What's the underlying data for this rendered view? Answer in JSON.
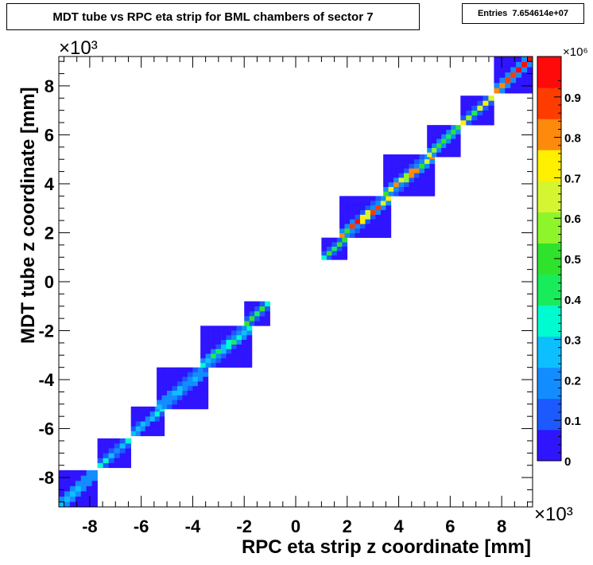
{
  "title": "MDT tube vs RPC eta strip for BML chambers of sector 7",
  "stats": {
    "label": "Entries",
    "value": "7.654614e+07"
  },
  "chart_data": {
    "type": "heatmap",
    "title": "MDT tube vs RPC eta strip for BML chambers of sector 7",
    "xlabel": "RPC eta strip z coordinate [mm]",
    "ylabel": "MDT tube z coordinate [mm]",
    "xlim": [
      -9.2,
      9.2
    ],
    "ylim": [
      -9.2,
      9.2
    ],
    "xticks": [
      -8,
      -6,
      -4,
      -2,
      0,
      2,
      4,
      6,
      8
    ],
    "yticks": [
      -8,
      -6,
      -4,
      -2,
      0,
      2,
      4,
      6,
      8
    ],
    "axis_multiplier": "×10³",
    "zlim": [
      0,
      1.0
    ],
    "zticks": [
      0,
      0.1,
      0.2,
      0.3,
      0.4,
      0.5,
      0.6,
      0.7,
      0.8,
      0.9
    ],
    "z_multiplier": "×10⁶",
    "palette": [
      "#2f14ff",
      "#1c59ff",
      "#138cff",
      "#0dbfff",
      "#00fbd1",
      "#19ec5b",
      "#2fe32c",
      "#8ef52b",
      "#d5f530",
      "#fff000",
      "#fd8a0c",
      "#ff3c00",
      "#ff0a0a"
    ],
    "blocks": [
      {
        "x0": -9.2,
        "x1": -7.7,
        "y0": -9.2,
        "y1": -7.7,
        "peak": 0.25
      },
      {
        "x0": -7.7,
        "x1": -6.4,
        "y0": -7.6,
        "y1": -6.4,
        "peak": 0.35
      },
      {
        "x0": -6.4,
        "x1": -5.1,
        "y0": -6.3,
        "y1": -5.1,
        "peak": 0.45
      },
      {
        "x0": -5.4,
        "x1": -3.4,
        "y0": -5.2,
        "y1": -3.5,
        "peak": 0.25
      },
      {
        "x0": -3.7,
        "x1": -1.7,
        "y0": -3.5,
        "y1": -1.8,
        "peak": 0.42
      },
      {
        "x0": -2.0,
        "x1": -1.0,
        "y0": -1.8,
        "y1": -0.8,
        "peak": 0.55
      },
      {
        "x0": 1.0,
        "x1": 2.0,
        "y0": 0.9,
        "y1": 1.8,
        "peak": 0.55
      },
      {
        "x0": 1.7,
        "x1": 3.7,
        "y0": 1.8,
        "y1": 3.5,
        "peak": 0.95
      },
      {
        "x0": 3.4,
        "x1": 5.4,
        "y0": 3.5,
        "y1": 5.2,
        "peak": 0.82
      },
      {
        "x0": 5.1,
        "x1": 6.4,
        "y0": 5.1,
        "y1": 6.4,
        "peak": 0.78
      },
      {
        "x0": 6.4,
        "x1": 7.7,
        "y0": 6.4,
        "y1": 7.6,
        "peak": 0.72
      },
      {
        "x0": 7.7,
        "x1": 9.2,
        "y0": 7.7,
        "y1": 9.2,
        "peak": 0.95
      }
    ]
  }
}
